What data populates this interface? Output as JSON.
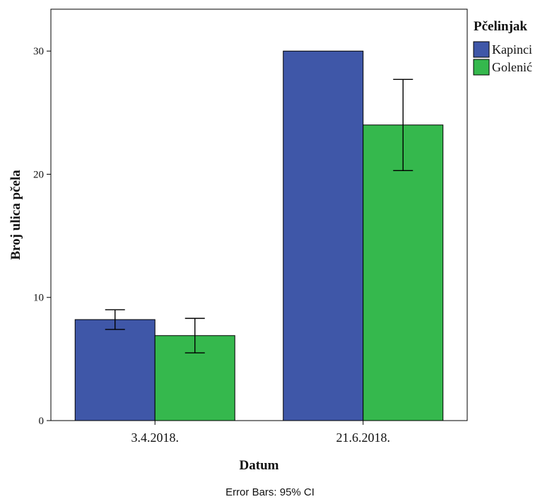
{
  "chart_data": {
    "type": "bar",
    "xlabel": "Datum",
    "ylabel": "Broj ulica pčela",
    "categories": [
      "3.4.2018.",
      "21.6.2018."
    ],
    "series": [
      {
        "name": "Kapinci",
        "color": "#3f57a8",
        "values": [
          8.2,
          30.0
        ],
        "ci_low": [
          7.4,
          null
        ],
        "ci_high": [
          9.0,
          null
        ]
      },
      {
        "name": "Golenić",
        "color": "#35b84d",
        "values": [
          6.9,
          24.0
        ],
        "ci_low": [
          5.5,
          20.3
        ],
        "ci_high": [
          8.3,
          27.7
        ]
      }
    ],
    "yticks": [
      0,
      10,
      20,
      30
    ],
    "ylim": [
      0,
      33.4
    ],
    "legend": {
      "title": "Pčelinjak",
      "position": "top-right"
    },
    "footnote": "Error Bars: 95% CI"
  }
}
